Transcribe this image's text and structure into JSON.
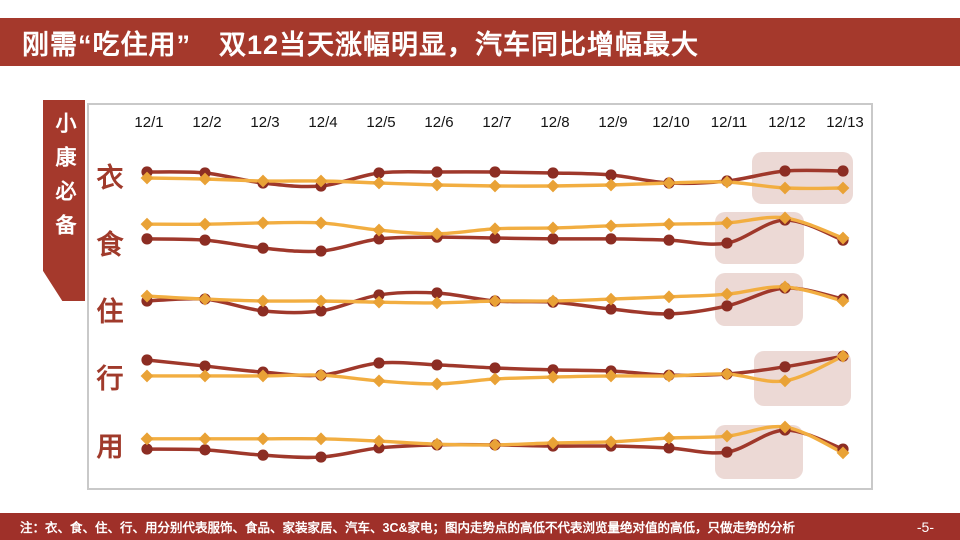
{
  "slide": {
    "title": "刚需“吃住用”　双12当天涨幅明显，汽车同比增幅最大",
    "sidebar_label": "小康必备",
    "footer_note": "注：衣、食、住、行、用分别代表服饰、食品、家装家居、汽车、3C&家电；图内走势点的高低不代表浏览量绝对值的高低，只做走势的分析",
    "page_number": "-5-"
  },
  "colors": {
    "header_bg": "#A5392C",
    "ribbon_bg": "#A5392C",
    "footer_bg": "#9F3029",
    "panel_border": "#C9C9C9",
    "category_label": "#A03A2B",
    "date_label": "#141414",
    "line_dark": "#9F382B",
    "marker_dark": "#8C2D23",
    "line_orange": "#F2AE41",
    "marker_orange": "#E9A236",
    "highlight_box": "#ECD9D5"
  },
  "chart_data": {
    "type": "line",
    "title": "",
    "xlabel": "",
    "ylabel": "",
    "x": [
      "12/1",
      "12/2",
      "12/3",
      "12/4",
      "12/5",
      "12/6",
      "12/7",
      "12/8",
      "12/9",
      "12/10",
      "12/11",
      "12/12",
      "12/13"
    ],
    "ylim": [
      0,
      100
    ],
    "grid": false,
    "legend_position": "none",
    "value_note": "relative trend index 0-100; point heights do not represent absolute pageview values (只做走势的分析)",
    "rows": [
      {
        "category": "衣",
        "highlight_dates": [
          "12/12",
          "12/13"
        ],
        "series": [
          {
            "name": "dark-red-line",
            "values": [
              80,
              76,
              36,
              24,
              76,
              80,
              80,
              76,
              68,
              36,
              44,
              84,
              84
            ]
          },
          {
            "name": "orange-line",
            "values": [
              56,
              52,
              44,
              44,
              36,
              28,
              24,
              24,
              28,
              36,
              40,
              16,
              16
            ]
          }
        ]
      },
      {
        "category": "食",
        "highlight_dates": [
          "12/11",
          "12/12"
        ],
        "series": [
          {
            "name": "dark-red-line",
            "values": [
              36,
              33,
              14,
              7,
              36,
              40,
              38,
              36,
              36,
              33,
              26,
              81,
              33
            ]
          },
          {
            "name": "orange-line",
            "values": [
              71,
              71,
              74,
              74,
              57,
              48,
              60,
              62,
              67,
              71,
              74,
              86,
              38
            ]
          }
        ]
      },
      {
        "category": "住",
        "highlight_dates": [
          "12/11",
          "12/12"
        ],
        "series": [
          {
            "name": "dark-red-line",
            "values": [
              50,
              55,
              24,
              24,
              66,
              71,
              50,
              47,
              29,
              16,
              37,
              84,
              55
            ]
          },
          {
            "name": "orange-line",
            "values": [
              63,
              55,
              50,
              50,
              47,
              45,
              50,
              50,
              55,
              61,
              68,
              87,
              50
            ]
          }
        ]
      },
      {
        "category": "行",
        "highlight_dates": [
          "12/12",
          "12/13"
        ],
        "series": [
          {
            "name": "dark-red-line",
            "values": [
              79,
              63,
              47,
              39,
              71,
              66,
              58,
              53,
              50,
              39,
              42,
              61,
              89
            ]
          },
          {
            "name": "orange-line",
            "values": [
              37,
              37,
              37,
              39,
              24,
              16,
              29,
              34,
              37,
              37,
              42,
              24,
              89
            ]
          }
        ]
      },
      {
        "category": "用",
        "highlight_dates": [
          "12/11",
          "12/12"
        ],
        "series": [
          {
            "name": "dark-red-line",
            "values": [
              34,
              32,
              18,
              13,
              37,
              45,
              45,
              42,
              42,
              37,
              26,
              84,
              34
            ]
          },
          {
            "name": "orange-line",
            "values": [
              61,
              61,
              61,
              61,
              55,
              47,
              45,
              50,
              53,
              63,
              68,
              92,
              24
            ]
          }
        ]
      }
    ]
  }
}
